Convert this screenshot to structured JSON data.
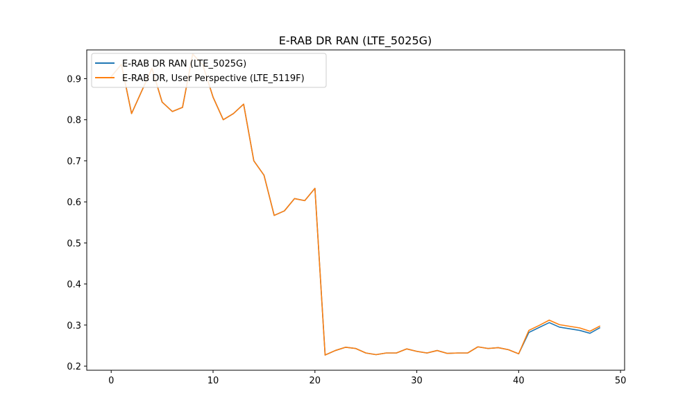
{
  "chart_data": {
    "type": "line",
    "title": "E-RAB DR RAN (LTE_5025G)",
    "xlabel": "",
    "ylabel": "",
    "xlim": [
      -2.4,
      50.4
    ],
    "ylim": [
      0.19,
      0.97
    ],
    "xticks": [
      0,
      10,
      20,
      30,
      40,
      50
    ],
    "yticks": [
      0.2,
      0.3,
      0.4,
      0.5,
      0.6,
      0.7,
      0.8,
      0.9
    ],
    "grid": false,
    "legend_position": "top-left",
    "x": [
      0,
      1,
      2,
      3,
      4,
      5,
      6,
      7,
      8,
      9,
      10,
      11,
      12,
      13,
      14,
      15,
      16,
      17,
      18,
      19,
      20,
      21,
      22,
      23,
      24,
      25,
      26,
      27,
      28,
      29,
      30,
      31,
      32,
      33,
      34,
      35,
      36,
      37,
      38,
      39,
      40,
      41,
      42,
      43,
      44,
      45,
      46,
      47,
      48
    ],
    "series": [
      {
        "name": "E-RAB DR RAN (LTE_5025G)",
        "color": "#1f77b4",
        "values": [
          0.905,
          0.935,
          0.815,
          0.87,
          0.925,
          0.843,
          0.82,
          0.83,
          0.96,
          0.933,
          0.855,
          0.8,
          0.815,
          0.838,
          0.7,
          0.665,
          0.567,
          0.578,
          0.608,
          0.603,
          0.633,
          0.227,
          0.238,
          0.246,
          0.243,
          0.232,
          0.228,
          0.232,
          0.232,
          0.242,
          0.236,
          0.232,
          0.238,
          0.231,
          0.232,
          0.232,
          0.247,
          0.243,
          0.245,
          0.24,
          0.23,
          0.282,
          0.294,
          0.306,
          0.295,
          0.291,
          0.287,
          0.28,
          0.294
        ]
      },
      {
        "name": "E-RAB DR, User Perspective (LTE_5119F)",
        "color": "#ff7f0e",
        "values": [
          0.905,
          0.935,
          0.815,
          0.87,
          0.925,
          0.843,
          0.82,
          0.83,
          0.96,
          0.933,
          0.855,
          0.8,
          0.815,
          0.838,
          0.7,
          0.665,
          0.567,
          0.578,
          0.608,
          0.603,
          0.633,
          0.227,
          0.238,
          0.246,
          0.243,
          0.232,
          0.228,
          0.232,
          0.232,
          0.242,
          0.236,
          0.232,
          0.238,
          0.231,
          0.232,
          0.232,
          0.247,
          0.243,
          0.245,
          0.24,
          0.23,
          0.287,
          0.299,
          0.312,
          0.301,
          0.297,
          0.293,
          0.285,
          0.298
        ]
      }
    ]
  }
}
